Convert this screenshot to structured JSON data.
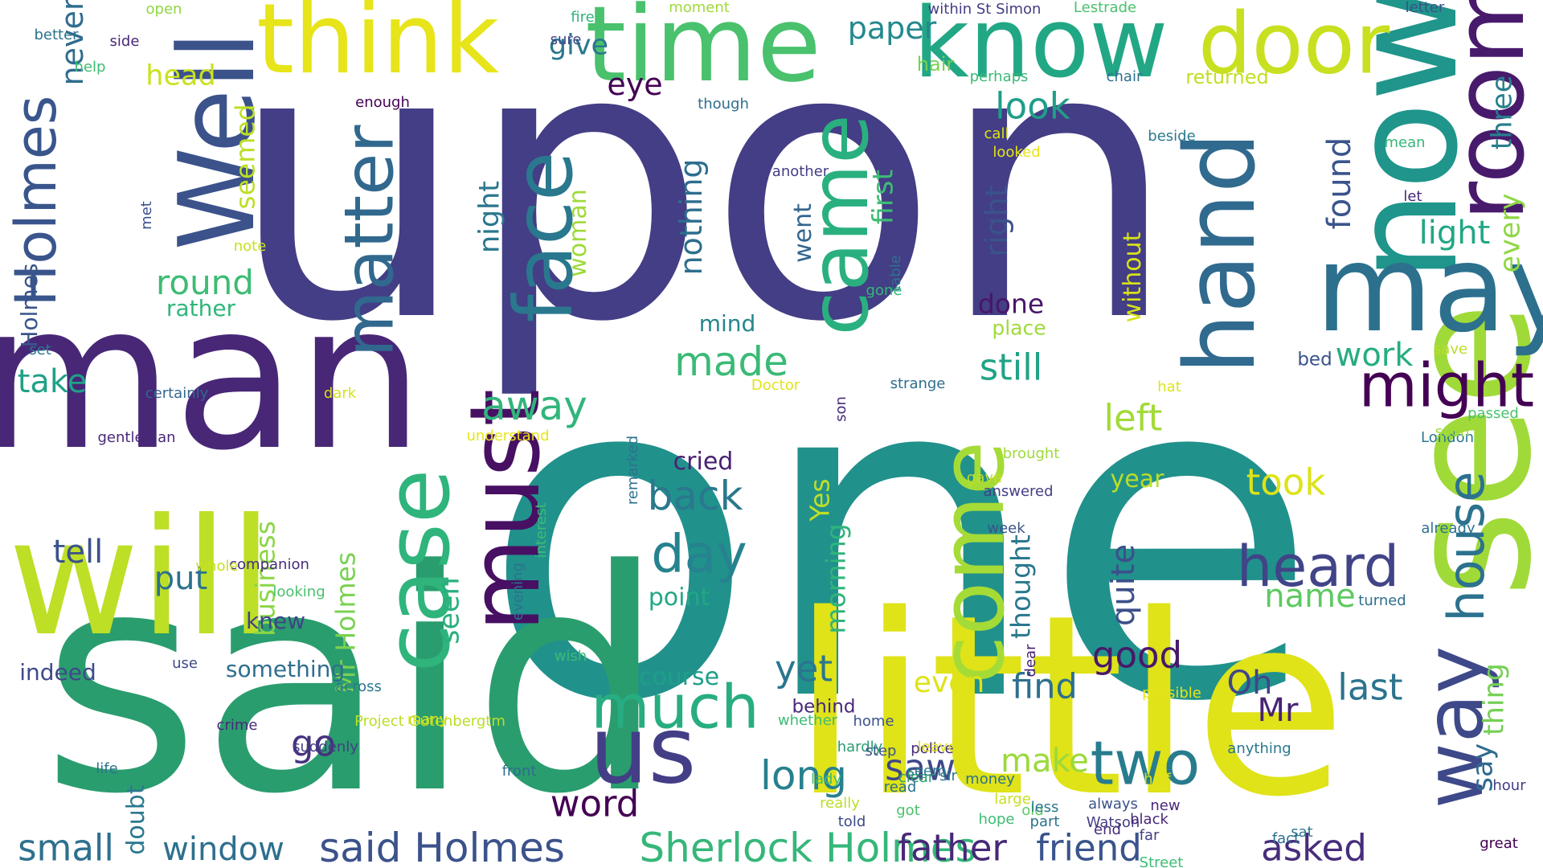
{
  "words": [
    {
      "text": "upon",
      "color": "#433e85"
    },
    {
      "text": "one",
      "color": "#21918c"
    },
    {
      "text": "said",
      "color": "#2a9d6e"
    },
    {
      "text": "little",
      "color": "#dfe318"
    },
    {
      "text": "man",
      "color": "#482777"
    },
    {
      "text": "will",
      "color": "#bddf26"
    },
    {
      "text": "see",
      "color": "#a0da39"
    },
    {
      "text": "now",
      "color": "#1f958b"
    },
    {
      "text": "may",
      "color": "#2d708e"
    },
    {
      "text": "time",
      "color": "#4ac16d"
    },
    {
      "text": "know",
      "color": "#22a785"
    },
    {
      "text": "think",
      "color": "#e7e419"
    },
    {
      "text": "door",
      "color": "#c8e020"
    },
    {
      "text": "Well",
      "color": "#3b528b"
    },
    {
      "text": "hand",
      "color": "#306a8e"
    },
    {
      "text": "room",
      "color": "#481a6c"
    },
    {
      "text": "must",
      "color": "#471063"
    },
    {
      "text": "case",
      "color": "#2fb47c"
    },
    {
      "text": "come",
      "color": "#a5db36"
    },
    {
      "text": "us",
      "color": "#433e85"
    },
    {
      "text": "way",
      "color": "#3e4989"
    },
    {
      "text": "face",
      "color": "#2a788e"
    },
    {
      "text": "came",
      "color": "#2ab07f"
    },
    {
      "text": "matter",
      "color": "#31688e"
    },
    {
      "text": "Holmes",
      "color": "#39558c"
    },
    {
      "text": "heard",
      "color": "#414487"
    },
    {
      "text": "much",
      "color": "#27ad81"
    },
    {
      "text": "two",
      "color": "#287c8e"
    },
    {
      "text": "might",
      "color": "#440154"
    },
    {
      "text": "house",
      "color": "#2c728e"
    },
    {
      "text": "day",
      "color": "#26828e"
    },
    {
      "text": "back",
      "color": "#2a788e"
    },
    {
      "text": "said Holmes",
      "color": "#3b528b"
    },
    {
      "text": "Sherlock Holmes",
      "color": "#35b779"
    },
    {
      "text": "friend",
      "color": "#3a548c"
    },
    {
      "text": "father",
      "color": "#482878"
    },
    {
      "text": "asked",
      "color": "#472d7b"
    },
    {
      "text": "long",
      "color": "#27808e"
    },
    {
      "text": "saw",
      "color": "#3f4788"
    },
    {
      "text": "made",
      "color": "#3aba76"
    },
    {
      "text": "away",
      "color": "#31b57b"
    },
    {
      "text": "go",
      "color": "#46327e"
    },
    {
      "text": "yet",
      "color": "#2a768e"
    },
    {
      "text": "word",
      "color": "#440154"
    },
    {
      "text": "small",
      "color": "#2d708e"
    },
    {
      "text": "window",
      "color": "#2e6f8e"
    },
    {
      "text": "take",
      "color": "#1fa187"
    },
    {
      "text": "tell",
      "color": "#3b528b"
    },
    {
      "text": "put",
      "color": "#2c728e"
    },
    {
      "text": "round",
      "color": "#3dbc74"
    },
    {
      "text": "look",
      "color": "#1f9e89"
    },
    {
      "text": "still",
      "color": "#20a386"
    },
    {
      "text": "left",
      "color": "#a2da37"
    },
    {
      "text": "good",
      "color": "#48186a"
    },
    {
      "text": "find",
      "color": "#2d708e"
    },
    {
      "text": "last",
      "color": "#2c738e"
    },
    {
      "text": "took",
      "color": "#dde318"
    },
    {
      "text": "make",
      "color": "#9bd93c"
    },
    {
      "text": "name",
      "color": "#5ec962"
    },
    {
      "text": "Oh",
      "color": "#404688"
    },
    {
      "text": "Mr",
      "color": "#482374"
    },
    {
      "text": "light",
      "color": "#22a785"
    },
    {
      "text": "work",
      "color": "#26ad81"
    },
    {
      "text": "found",
      "color": "#3a548c"
    },
    {
      "text": "three",
      "color": "#277f8e"
    },
    {
      "text": "every",
      "color": "#8fd744"
    },
    {
      "text": "thing",
      "color": "#75d054"
    },
    {
      "text": "say",
      "color": "#2f6b8e"
    },
    {
      "text": "give",
      "color": "#2a778e"
    },
    {
      "text": "head",
      "color": "#cae11f"
    },
    {
      "text": "paper",
      "color": "#23898e"
    },
    {
      "text": "eye",
      "color": "#440154"
    },
    {
      "text": "never",
      "color": "#2f6c8e"
    },
    {
      "text": "seemed",
      "color": "#bddf26"
    },
    {
      "text": "nothing",
      "color": "#2e6e8e"
    },
    {
      "text": "night",
      "color": "#2a768e"
    },
    {
      "text": "woman",
      "color": "#9fda3a"
    },
    {
      "text": "first",
      "color": "#3dbc74"
    },
    {
      "text": "went",
      "color": "#32658e"
    },
    {
      "text": "right",
      "color": "#3b528b"
    },
    {
      "text": "done",
      "color": "#481668"
    },
    {
      "text": "place",
      "color": "#9fda3a"
    },
    {
      "text": "without",
      "color": "#d8e219"
    },
    {
      "text": "year",
      "color": "#bade28"
    },
    {
      "text": "quite",
      "color": "#3c4f8a"
    },
    {
      "text": "thought",
      "color": "#2a788e"
    },
    {
      "text": "seen",
      "color": "#2ab07f"
    },
    {
      "text": "business",
      "color": "#8bd646"
    },
    {
      "text": "Mr Holmes",
      "color": "#7ad151"
    },
    {
      "text": "morning",
      "color": "#2fb47c"
    },
    {
      "text": "Yes",
      "color": "#bddf26"
    },
    {
      "text": "even",
      "color": "#dde318"
    },
    {
      "text": "cried",
      "color": "#482173"
    },
    {
      "text": "point",
      "color": "#22a785"
    },
    {
      "text": "course",
      "color": "#1f9e89"
    },
    {
      "text": "doubt",
      "color": "#2a788e"
    },
    {
      "text": "mind",
      "color": "#25858e"
    },
    {
      "text": "rather",
      "color": "#32b67a"
    },
    {
      "text": "something",
      "color": "#2e6e8e"
    },
    {
      "text": "indeed",
      "color": "#3e4989"
    },
    {
      "text": "knew",
      "color": "#414487"
    },
    {
      "text": "Holmes",
      "color": "#39558c"
    },
    {
      "text": "open",
      "color": "#8fd744"
    },
    {
      "text": "better",
      "color": "#2c728e"
    },
    {
      "text": "help",
      "color": "#3dbc74"
    },
    {
      "text": "side",
      "color": "#482878"
    },
    {
      "text": "fire",
      "color": "#2fb47c"
    },
    {
      "text": "moment",
      "color": "#a0da39"
    },
    {
      "text": "within St Simon",
      "color": "#433e85"
    },
    {
      "text": "Lestrade",
      "color": "#4ac16d"
    },
    {
      "text": "letter",
      "color": "#3b528b"
    },
    {
      "text": "sure",
      "color": "#414487"
    },
    {
      "text": "hair",
      "color": "#7ad151"
    },
    {
      "text": "perhaps",
      "color": "#3aba76"
    },
    {
      "text": "chair",
      "color": "#2d708e"
    },
    {
      "text": "returned",
      "color": "#c2df23"
    },
    {
      "text": "though",
      "color": "#2e6e8e"
    },
    {
      "text": "enough",
      "color": "#440154"
    },
    {
      "text": "call",
      "color": "#dde318"
    },
    {
      "text": "looked",
      "color": "#e7e419"
    },
    {
      "text": "beside",
      "color": "#2a788e"
    },
    {
      "text": "mean",
      "color": "#35b779"
    },
    {
      "text": "let",
      "color": "#482878"
    },
    {
      "text": "another",
      "color": "#433e85"
    },
    {
      "text": "met",
      "color": "#3b528b"
    },
    {
      "text": "note",
      "color": "#c8e020"
    },
    {
      "text": "set",
      "color": "#2a788e"
    },
    {
      "text": "table",
      "color": "#2c728e"
    },
    {
      "text": "gone",
      "color": "#35b779"
    },
    {
      "text": "bed",
      "color": "#3b528b"
    },
    {
      "text": "save",
      "color": "#bade28"
    },
    {
      "text": "strange",
      "color": "#2e6e8e"
    },
    {
      "text": "Doctor",
      "color": "#e3e418"
    },
    {
      "text": "hat",
      "color": "#dde318"
    },
    {
      "text": "passed",
      "color": "#4ac16d"
    },
    {
      "text": "certainly",
      "color": "#31688e"
    },
    {
      "text": "dark",
      "color": "#d2e21b"
    },
    {
      "text": "gentleman",
      "color": "#482878"
    },
    {
      "text": "understand",
      "color": "#e7e419"
    },
    {
      "text": "son",
      "color": "#472d7b"
    },
    {
      "text": "London",
      "color": "#2a788e"
    },
    {
      "text": "gave",
      "color": "#c2df23"
    },
    {
      "text": "answered",
      "color": "#433e85"
    },
    {
      "text": "remarked",
      "color": "#2c728e"
    },
    {
      "text": "week",
      "color": "#3b528b"
    },
    {
      "text": "soon",
      "color": "#a0da39"
    },
    {
      "text": "already",
      "color": "#2c728e"
    },
    {
      "text": "dear",
      "color": "#482173"
    },
    {
      "text": "brought",
      "color": "#9fda3a"
    },
    {
      "text": "interest",
      "color": "#3dbc74"
    },
    {
      "text": "companion",
      "color": "#472d7b"
    },
    {
      "text": "looking",
      "color": "#4ac16d"
    },
    {
      "text": "whole",
      "color": "#c8e020"
    },
    {
      "text": "use",
      "color": "#3e4989"
    },
    {
      "text": "turned",
      "color": "#2e6e8e"
    },
    {
      "text": "wish",
      "color": "#3dbc74"
    },
    {
      "text": "evening",
      "color": "#2c728e"
    },
    {
      "text": "behind",
      "color": "#482878"
    },
    {
      "text": "suddenly",
      "color": "#433e85"
    },
    {
      "text": "possible",
      "color": "#e7e419"
    },
    {
      "text": "life",
      "color": "#2c728e"
    },
    {
      "text": "across",
      "color": "#2a788e"
    },
    {
      "text": "many",
      "color": "#e3e418"
    },
    {
      "text": "Project Gutenbergtm",
      "color": "#bade28"
    },
    {
      "text": "whether",
      "color": "#3dbc74"
    },
    {
      "text": "home",
      "color": "#3b528b"
    },
    {
      "text": "police",
      "color": "#482878"
    },
    {
      "text": "leave",
      "color": "#dde318"
    },
    {
      "text": "hardly",
      "color": "#2a9d6e"
    },
    {
      "text": "step",
      "color": "#3b528b"
    },
    {
      "text": "seem",
      "color": "#2a788e"
    },
    {
      "text": "crime",
      "color": "#482878"
    },
    {
      "text": "anything",
      "color": "#2a788e"
    },
    {
      "text": "hour",
      "color": "#433e85"
    },
    {
      "text": "front",
      "color": "#2e6e8e"
    },
    {
      "text": "lady",
      "color": "#3dbc74"
    },
    {
      "text": "sir",
      "color": "#2a788e"
    },
    {
      "text": "clear",
      "color": "#2a9d6e"
    },
    {
      "text": "really",
      "color": "#bade28"
    },
    {
      "text": "told",
      "color": "#3e4989"
    },
    {
      "text": "money",
      "color": "#2c728e"
    },
    {
      "text": "old",
      "color": "#5ec962"
    },
    {
      "text": "got",
      "color": "#4ac16d"
    },
    {
      "text": "end",
      "color": "#472d7b"
    },
    {
      "text": "part",
      "color": "#2c728e"
    },
    {
      "text": "sat",
      "color": "#2a788e"
    },
    {
      "text": "fact",
      "color": "#2e6e8e"
    },
    {
      "text": "new",
      "color": "#482878"
    },
    {
      "text": "half",
      "color": "#dde318"
    },
    {
      "text": "Watson",
      "color": "#433e85"
    },
    {
      "text": "Street",
      "color": "#3dbc74"
    },
    {
      "text": "great",
      "color": "#440154"
    },
    {
      "text": "always",
      "color": "#3b528b"
    },
    {
      "text": "large",
      "color": "#c8e020"
    },
    {
      "text": "read",
      "color": "#2c728e"
    },
    {
      "text": "less",
      "color": "#2a788e"
    },
    {
      "text": "far",
      "color": "#433e85"
    },
    {
      "text": "black",
      "color": "#482878"
    },
    {
      "text": "hope",
      "color": "#3dbc74"
    }
  ]
}
